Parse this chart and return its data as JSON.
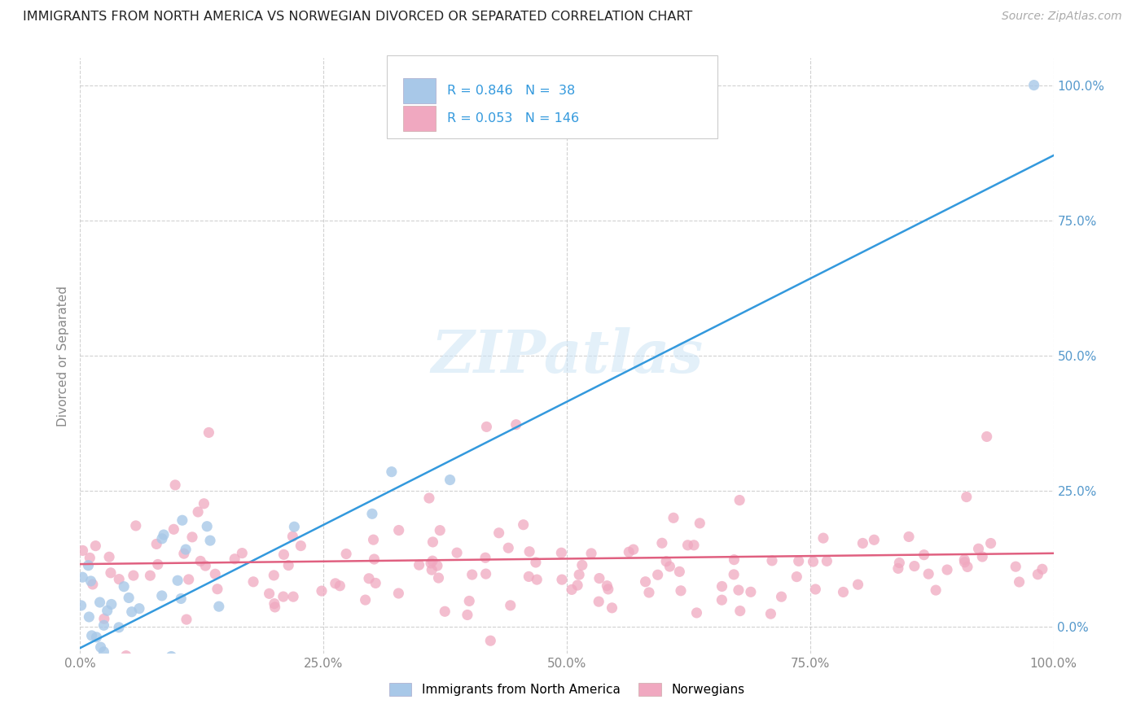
{
  "title": "IMMIGRANTS FROM NORTH AMERICA VS NORWEGIAN DIVORCED OR SEPARATED CORRELATION CHART",
  "source": "Source: ZipAtlas.com",
  "ylabel": "Divorced or Separated",
  "series1_label": "Immigrants from North America",
  "series2_label": "Norwegians",
  "R1": 0.846,
  "N1": 38,
  "R2": 0.053,
  "N2": 146,
  "xlim": [
    0.0,
    1.0
  ],
  "ylim": [
    -0.05,
    1.05
  ],
  "xticks": [
    0.0,
    0.25,
    0.5,
    0.75,
    1.0
  ],
  "yticks": [
    0.0,
    0.25,
    0.5,
    0.75,
    1.0
  ],
  "color1": "#a8c8e8",
  "color2": "#f0a8c0",
  "line_color1": "#3399dd",
  "line_color2": "#e06080",
  "tick_color": "#5599cc",
  "watermark": "ZIPatlas",
  "background_color": "#ffffff",
  "blue_line_x0": 0.0,
  "blue_line_y0": -0.04,
  "blue_line_x1": 1.0,
  "blue_line_y1": 0.87,
  "pink_line_x0": 0.0,
  "pink_line_y0": 0.115,
  "pink_line_x1": 1.0,
  "pink_line_y1": 0.135
}
